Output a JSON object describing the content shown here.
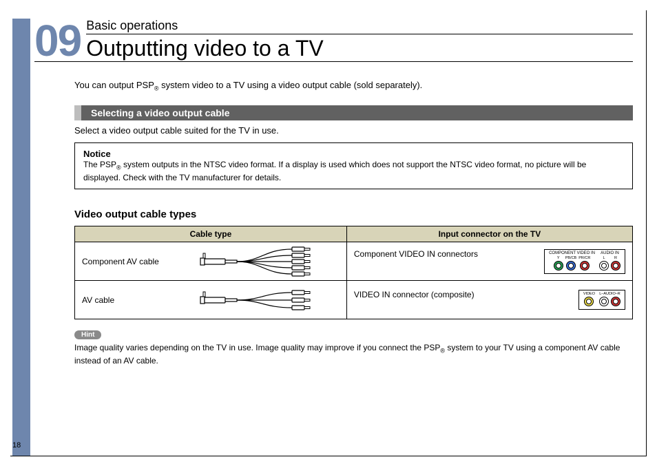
{
  "page_number": "18",
  "chapter_number": "09",
  "section_label": "Basic operations",
  "page_title": "Outputting video to a TV",
  "intro_text_a": "You can output PSP",
  "intro_text_b": " system video to a TV using a video output cable (sold separately).",
  "subheader": "Selecting a video output cable",
  "select_text": "Select a video output cable suited for the TV in use.",
  "notice": {
    "title": "Notice",
    "text_a": "The PSP",
    "text_b": " system outputs in the NTSC video format. If a display is used which does not support the NTSC video format, no picture will be displayed. Check with the TV manufacturer for details."
  },
  "table_section_title": "Video output cable types",
  "table": {
    "headers": [
      "Cable type",
      "Input connector on the TV"
    ],
    "rows": [
      {
        "cable_type": "Component AV cable",
        "num_plugs": 5,
        "connector_text": "Component VIDEO IN connectors",
        "groups": [
          {
            "title": "COMPONENT VIDEO IN",
            "jacks": [
              {
                "label": "Y",
                "color": "#2aa558"
              },
              {
                "label": "PB/CB",
                "color": "#3b6fd6"
              },
              {
                "label": "PR/CR",
                "color": "#d23a3a"
              }
            ]
          },
          {
            "title": "AUDIO IN",
            "jacks": [
              {
                "label": "L",
                "color": "#ffffff"
              },
              {
                "label": "R",
                "color": "#d23a3a"
              }
            ]
          }
        ]
      },
      {
        "cable_type": "AV cable",
        "num_plugs": 3,
        "connector_text": "VIDEO IN connector (composite)",
        "groups": [
          {
            "title": "",
            "jacks": [
              {
                "label": "VIDEO",
                "color": "#e8d84a"
              }
            ]
          },
          {
            "title": "",
            "jacks_label_combined": "L–AUDIO–R",
            "jacks": [
              {
                "label": "",
                "color": "#ffffff"
              },
              {
                "label": "",
                "color": "#d23a3a"
              }
            ]
          }
        ]
      }
    ]
  },
  "hint": {
    "label": "Hint",
    "text_a": "Image quality varies depending on the TV in use. Image quality may improve if you connect the PSP",
    "text_b": " system to your TV using a component AV cable instead of an AV cable."
  },
  "colors": {
    "sidebar": "#6e86ad",
    "table_header_bg": "#d8d4b8",
    "subheader_bg": "#616161",
    "hint_bg": "#8a8a8a"
  }
}
